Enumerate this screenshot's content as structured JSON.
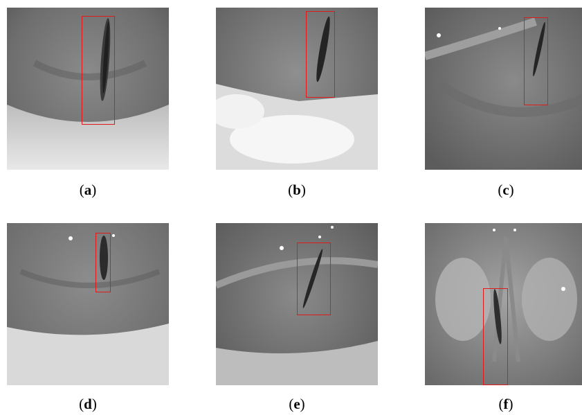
{
  "panels": [
    {
      "id": "a",
      "caption_prefix": "(",
      "caption_letter": "a",
      "caption_suffix": ")"
    },
    {
      "id": "b",
      "caption_prefix": "(",
      "caption_letter": "b",
      "caption_suffix": ")"
    },
    {
      "id": "c",
      "caption_prefix": "(",
      "caption_letter": "c",
      "caption_suffix": ")"
    },
    {
      "id": "d",
      "caption_prefix": "(",
      "caption_letter": "d",
      "caption_suffix": ")"
    },
    {
      "id": "e",
      "caption_prefix": "(",
      "caption_letter": "e",
      "caption_suffix": ")"
    },
    {
      "id": "f",
      "caption_prefix": "(",
      "caption_letter": "f",
      "caption_suffix": ")"
    }
  ],
  "colors": {
    "bbox": "#e01a1a",
    "background": "#ffffff"
  }
}
